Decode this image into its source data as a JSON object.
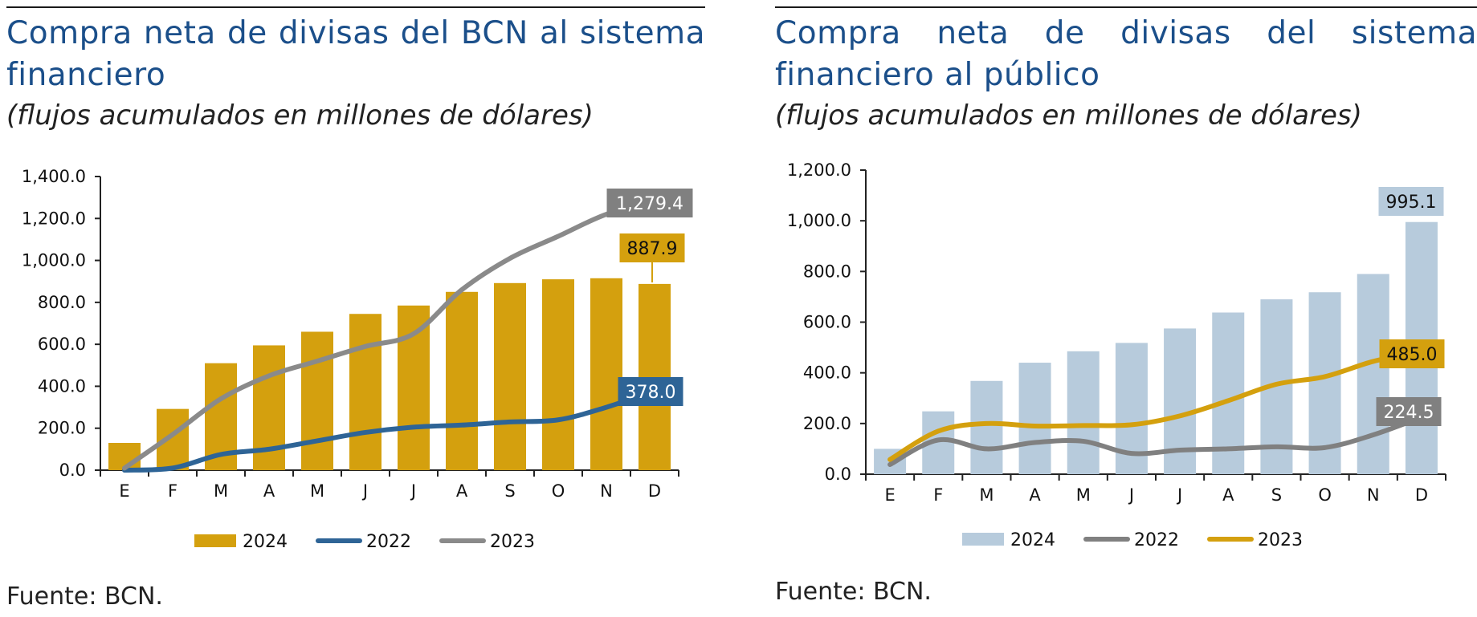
{
  "chart_data": [
    {
      "type": "bar",
      "title": "Compra neta de divisas del BCN al sistema financiero",
      "subtitle": "(flujos acumulados en millones de dólares)",
      "source": "Fuente: BCN.",
      "categories": [
        "E",
        "F",
        "M",
        "A",
        "M",
        "J",
        "J",
        "A",
        "S",
        "O",
        "N",
        "D"
      ],
      "ylim": [
        0,
        1400
      ],
      "yticks": [
        "0.0",
        "200.0",
        "400.0",
        "600.0",
        "800.0",
        "1,000.0",
        "1,200.0",
        "1,400.0"
      ],
      "series": [
        {
          "name": "2024",
          "kind": "bar",
          "color": "#d4a00e",
          "values": [
            130,
            292,
            510,
            595,
            660,
            745,
            785,
            850,
            892,
            910,
            915,
            887.9
          ]
        },
        {
          "name": "2022",
          "kind": "line",
          "color": "#2e6496",
          "values": [
            0,
            10,
            75,
            100,
            140,
            180,
            205,
            215,
            230,
            240,
            300,
            378.0
          ]
        },
        {
          "name": "2023",
          "kind": "line",
          "color": "#8a8a8a",
          "values": [
            10,
            170,
            340,
            450,
            520,
            590,
            650,
            860,
            1010,
            1115,
            1220,
            1279.4
          ]
        }
      ],
      "labels": [
        {
          "text": "1,279.4",
          "color": "#808080",
          "textColor": "#ffffff"
        },
        {
          "text": "887.9",
          "color": "#d4a00e",
          "textColor": "#111111"
        },
        {
          "text": "378.0",
          "color": "#2e6496",
          "textColor": "#ffffff"
        }
      ]
    },
    {
      "type": "bar",
      "title": "Compra neta de divisas del sistema financiero al público",
      "subtitle": "(flujos acumulados en millones de dólares)",
      "source": "Fuente: BCN.",
      "categories": [
        "E",
        "F",
        "M",
        "A",
        "M",
        "J",
        "J",
        "A",
        "S",
        "O",
        "N",
        "D"
      ],
      "ylim": [
        0,
        1200
      ],
      "yticks": [
        "0.0",
        "200.0",
        "400.0",
        "600.0",
        "800.0",
        "1,000.0",
        "1,200.0"
      ],
      "series": [
        {
          "name": "2024",
          "kind": "bar",
          "color": "#b7cbdc",
          "values": [
            100,
            248,
            368,
            440,
            485,
            518,
            575,
            638,
            690,
            718,
            790,
            995.1
          ]
        },
        {
          "name": "2022",
          "kind": "line",
          "color": "#808080",
          "values": [
            38,
            135,
            100,
            125,
            130,
            82,
            95,
            100,
            108,
            105,
            155,
            224.5
          ]
        },
        {
          "name": "2023",
          "kind": "line",
          "color": "#d4a00e",
          "values": [
            58,
            170,
            200,
            190,
            192,
            195,
            230,
            290,
            355,
            385,
            445,
            485.0
          ]
        }
      ],
      "labels": [
        {
          "text": "995.1",
          "color": "#b7cbdc",
          "textColor": "#111111"
        },
        {
          "text": "485.0",
          "color": "#d4a00e",
          "textColor": "#111111"
        },
        {
          "text": "224.5",
          "color": "#808080",
          "textColor": "#ffffff"
        }
      ]
    }
  ]
}
